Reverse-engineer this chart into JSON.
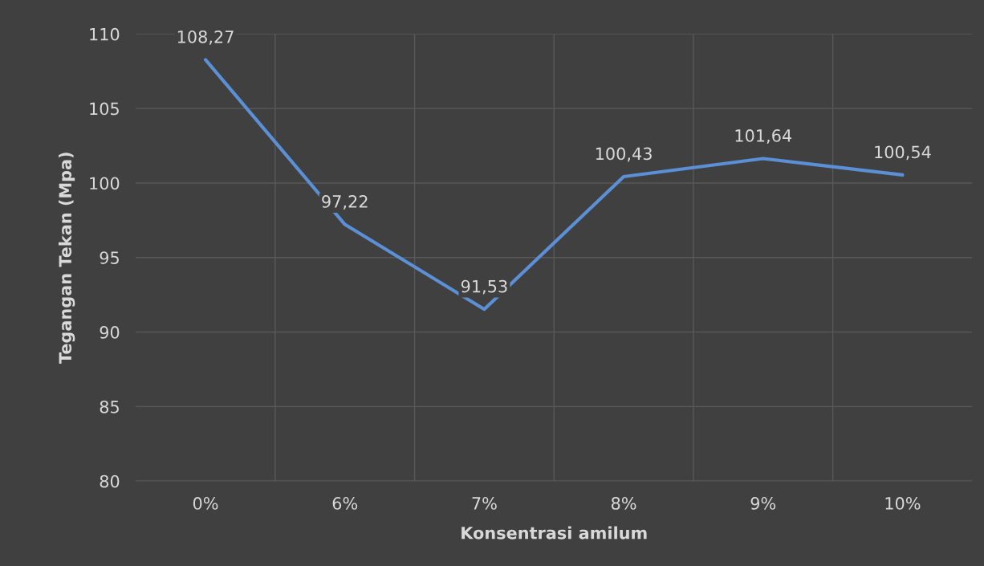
{
  "chart_data": {
    "type": "line",
    "xlabel": "Konsentrasi amilum",
    "ylabel": "Tegangan Tekan (Mpa)",
    "categories": [
      "0%",
      "6%",
      "7%",
      "8%",
      "9%",
      "10%"
    ],
    "series": [
      {
        "color": "#5b8fd6",
        "values": [
          108.27,
          97.22,
          91.53,
          100.43,
          101.64,
          100.54
        ],
        "value_labels": [
          "108,27",
          "97,22",
          "91,53",
          "100,43",
          "101,64",
          "100,54"
        ]
      }
    ],
    "ylim": [
      80,
      110
    ],
    "yticks": [
      80,
      85,
      90,
      95,
      100,
      105,
      110
    ],
    "grid": true,
    "marker": "none",
    "line_style": "solid"
  }
}
